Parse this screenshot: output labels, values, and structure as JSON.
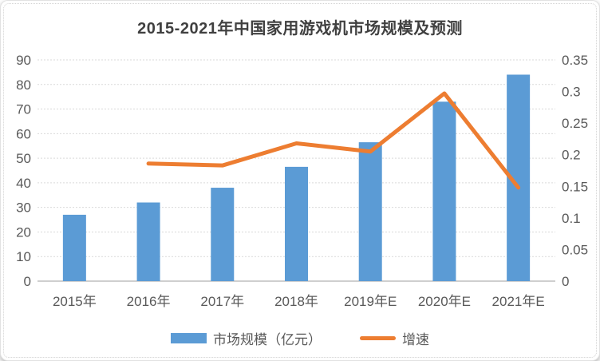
{
  "chart_data": {
    "type": "bar+line",
    "title": "2015-2021年中国家用游戏机市场规模及预测",
    "categories": [
      "2015年",
      "2016年",
      "2017年",
      "2018年",
      "2019年E",
      "2020年E",
      "2021年E"
    ],
    "series": [
      {
        "name": "市场规模（亿元）",
        "type": "bar",
        "axis": "left",
        "color": "#5B9BD5",
        "values": [
          27,
          32,
          38,
          46.5,
          56.5,
          73,
          84
        ]
      },
      {
        "name": "增速",
        "type": "line",
        "axis": "right",
        "color": "#ED7D31",
        "values": [
          null,
          0.186,
          0.183,
          0.218,
          0.205,
          0.297,
          0.148
        ]
      }
    ],
    "left_axis": {
      "min": 0,
      "max": 90,
      "step": 10,
      "ticks": [
        "0",
        "10",
        "20",
        "30",
        "40",
        "50",
        "60",
        "70",
        "80",
        "90"
      ]
    },
    "right_axis": {
      "min": 0,
      "max": 0.35,
      "step": 0.05,
      "ticks": [
        "0",
        "0.05",
        "0.1",
        "0.15",
        "0.2",
        "0.25",
        "0.3",
        "0.35"
      ]
    },
    "grid": true,
    "legend_position": "bottom"
  },
  "colors": {
    "grid": "#d9d9d9",
    "axis_line": "#bfbfbf",
    "tick_text": "#595959",
    "title_text": "#404040"
  }
}
